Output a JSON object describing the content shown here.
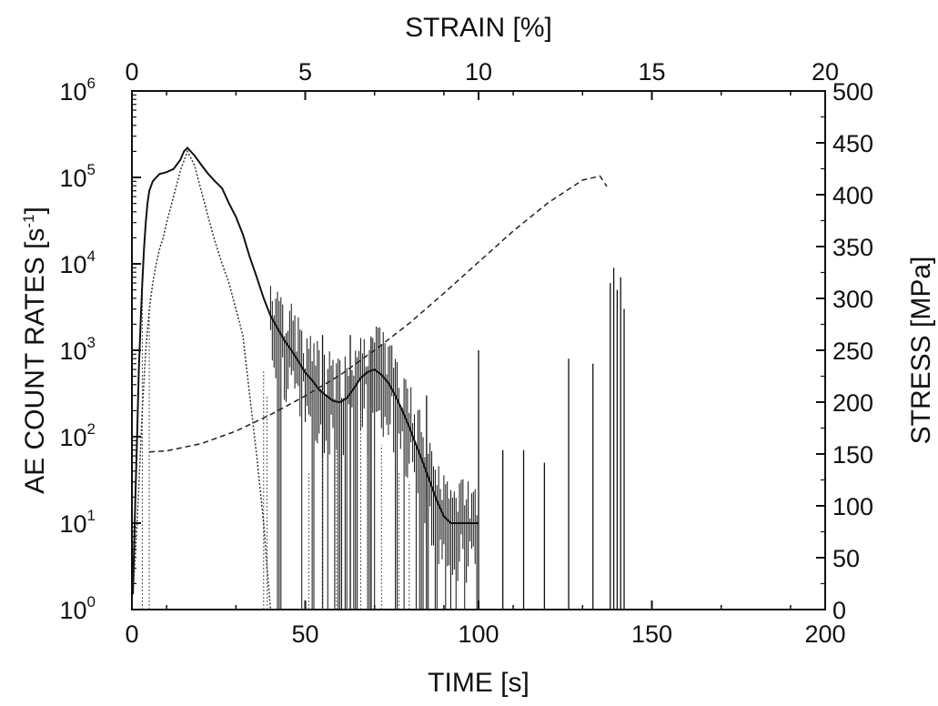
{
  "chart_data": {
    "type": "line",
    "title": "",
    "x_bottom": {
      "label": "TIME [s]",
      "range": [
        0,
        200
      ],
      "ticks": [
        0,
        50,
        100,
        150,
        200
      ]
    },
    "x_top": {
      "label": "STRAIN [%]",
      "range": [
        0,
        20
      ],
      "ticks": [
        0,
        5,
        10,
        15,
        20
      ]
    },
    "y_left": {
      "label": "AE COUNT RATES [s",
      "label_sup": "-1",
      "label_end": "]",
      "scale": "log",
      "range": [
        1,
        1000000
      ],
      "ticks": [
        {
          "base": "10",
          "exp": "0"
        },
        {
          "base": "10",
          "exp": "1"
        },
        {
          "base": "10",
          "exp": "2"
        },
        {
          "base": "10",
          "exp": "3"
        },
        {
          "base": "10",
          "exp": "4"
        },
        {
          "base": "10",
          "exp": "5"
        },
        {
          "base": "10",
          "exp": "6"
        }
      ]
    },
    "y_right": {
      "label": "STRESS [MPa]",
      "range": [
        0,
        500
      ],
      "ticks": [
        0,
        50,
        100,
        150,
        200,
        250,
        300,
        350,
        400,
        450,
        500
      ]
    },
    "grid": false,
    "legend": "none",
    "series": [
      {
        "style": "solid",
        "axis": "left",
        "x": [
          0.3,
          1,
          1.5,
          2,
          2.5,
          3,
          3.5,
          4,
          4.5,
          5,
          6,
          7,
          8,
          9,
          10,
          12,
          14,
          15,
          16,
          18,
          20,
          22,
          24,
          26,
          28,
          30,
          32,
          34,
          36,
          38,
          40,
          42,
          44,
          46,
          48,
          50,
          52,
          54,
          56,
          58,
          60,
          62,
          64,
          66,
          68,
          70,
          72,
          74,
          76,
          78,
          80,
          82,
          84,
          86,
          88,
          90,
          92,
          94,
          96,
          98,
          100
        ],
        "y": [
          1.5,
          20,
          100,
          600,
          2000,
          6000,
          15000,
          30000,
          50000,
          70000,
          90000,
          100000,
          110000,
          112000,
          115000,
          125000,
          160000,
          200000,
          220000,
          180000,
          140000,
          110000,
          90000,
          75000,
          50000,
          35000,
          22000,
          12000,
          7000,
          4000,
          2500,
          1800,
          1300,
          1000,
          750,
          550,
          450,
          350,
          300,
          260,
          250,
          280,
          360,
          480,
          560,
          600,
          520,
          420,
          300,
          200,
          130,
          80,
          50,
          30,
          18,
          12,
          10,
          10,
          10,
          10,
          10
        ]
      },
      {
        "style": "dotted",
        "axis": "left",
        "x": [
          0.5,
          1.5,
          3,
          4,
          5,
          6,
          7,
          8,
          9,
          10,
          12,
          14,
          16,
          18,
          20,
          22,
          24,
          26,
          28,
          30,
          32,
          34,
          36,
          38,
          39,
          40
        ],
        "y": [
          2,
          10,
          200,
          1000,
          3000,
          6000,
          10000,
          15000,
          20000,
          30000,
          60000,
          120000,
          200000,
          140000,
          70000,
          35000,
          18000,
          10000,
          6000,
          3000,
          1500,
          300,
          60,
          10,
          3,
          1
        ]
      },
      {
        "style": "dashed",
        "axis": "right",
        "x": [
          0.5,
          1,
          2,
          3,
          4,
          5,
          6,
          7,
          8,
          9,
          10,
          11,
          12,
          13,
          13.5,
          13.7
        ],
        "y": [
          152,
          153,
          160,
          172,
          188,
          206,
          226,
          250,
          276,
          305,
          335,
          365,
          392,
          414,
          418,
          408
        ]
      }
    ]
  }
}
